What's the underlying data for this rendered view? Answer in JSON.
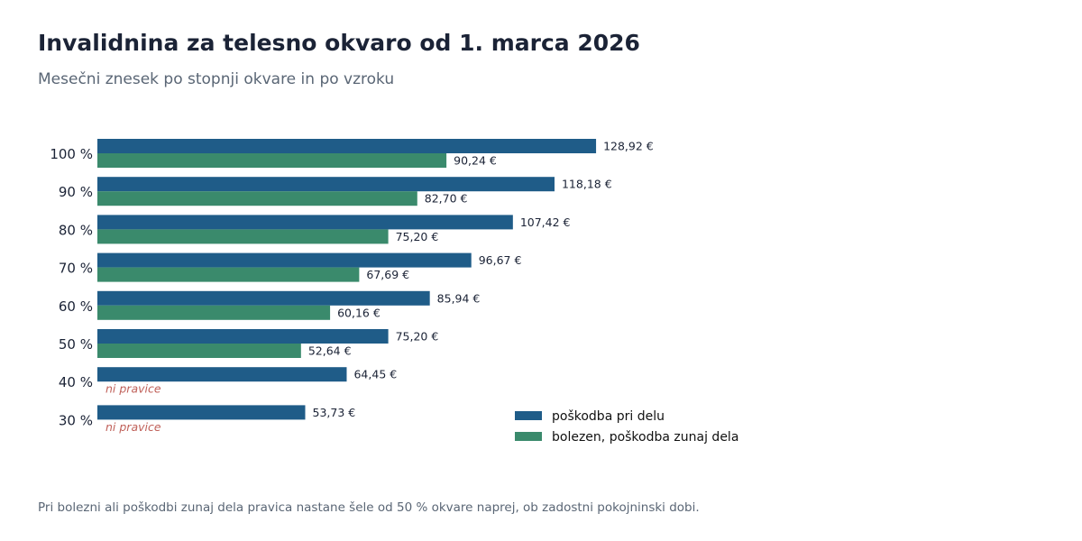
{
  "chart_data": {
    "type": "bar",
    "orientation": "horizontal",
    "title": "Invalidnina za telesno okvaro od 1. marca 2026",
    "subtitle": "Mesečni znesek po stopnji okvare in po vzroku",
    "categories": [
      "100 %",
      "90 %",
      "80 %",
      "70 %",
      "60 %",
      "50 %",
      "40 %",
      "30 %"
    ],
    "series": [
      {
        "name": "poškodba pri delu",
        "color": "#1f5c88",
        "values": [
          128.92,
          118.18,
          107.42,
          96.67,
          85.94,
          75.2,
          64.45,
          53.73
        ],
        "labels": [
          "128,92 €",
          "118,18 €",
          "107,42 €",
          "96,67 €",
          "85,94 €",
          "75,20 €",
          "64,45 €",
          "53,73 €"
        ]
      },
      {
        "name": "bolezen, poškodba zunaj dela",
        "color": "#3a8a6c",
        "values": [
          90.24,
          82.7,
          75.2,
          67.69,
          60.16,
          52.64,
          null,
          null
        ],
        "labels": [
          "90,24 €",
          "82,70 €",
          "75,20 €",
          "67,69 €",
          "60,16 €",
          "52,64 €",
          "ni pravice",
          "ni pravice"
        ]
      }
    ],
    "xlim": [
      0,
      150
    ],
    "grid": false,
    "legend_position": "bottom-right",
    "no_value_color": "#c0615a"
  },
  "footnote": "Pri bolezni ali poškodbi zunaj dela pravica nastane šele od 50 % okvare naprej, ob zadostni pokojninski dobi."
}
